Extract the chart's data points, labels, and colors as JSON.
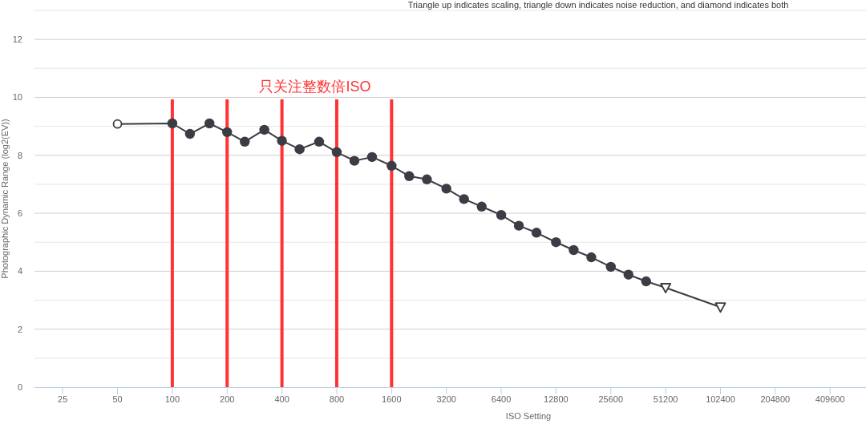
{
  "chart_data": {
    "type": "line",
    "subtitle": "Triangle up indicates scaling, triangle down indicates noise reduction, and diamond indicates both",
    "xlabel": "ISO Setting",
    "ylabel": "Photographic Dynamic Range (log2(EV))",
    "annotations": [
      "只关注整数倍ISO"
    ],
    "log": "x",
    "xlim": [
      17.5,
      645000
    ],
    "xticks": [
      25,
      50,
      100,
      200,
      400,
      800,
      1600,
      3200,
      6400,
      12800,
      25600,
      51200,
      102400,
      204800,
      409600
    ],
    "ylim": [
      0,
      13
    ],
    "yticks": [
      0,
      {
        "value": 1,
        "label": null
      },
      2,
      {
        "value": 3,
        "label": null
      },
      4,
      {
        "value": 5,
        "label": null
      },
      6,
      {
        "value": 7,
        "label": null
      },
      8,
      {
        "value": 9,
        "label": null
      },
      10,
      {
        "value": 11,
        "label": null
      },
      12,
      {
        "value": 13,
        "label": null
      }
    ],
    "grid": "y",
    "series": [
      {
        "color": "#3c3c44",
        "x": [
          50,
          100,
          125,
          160,
          200,
          250,
          320,
          400,
          500,
          640,
          800,
          1000,
          1250,
          1600,
          2000,
          2500,
          3200,
          4000,
          5000,
          6400,
          8000,
          10000,
          12800,
          16000,
          20000,
          25600,
          32000,
          40000,
          51200,
          102400
        ],
        "values": [
          9.08,
          9.1,
          8.74,
          9.1,
          8.8,
          8.47,
          8.88,
          8.5,
          8.21,
          8.47,
          8.11,
          7.81,
          7.94,
          7.64,
          7.28,
          7.17,
          6.85,
          6.49,
          6.23,
          5.94,
          5.57,
          5.33,
          5.0,
          4.73,
          4.48,
          4.15,
          3.88,
          3.65,
          3.43,
          2.76
        ],
        "marker": [
          "circle",
          "circle",
          "circle",
          "circle",
          "circle",
          "circle",
          "circle",
          "circle",
          "circle",
          "circle",
          "circle",
          "circle",
          "circle",
          "circle",
          "circle",
          "circle",
          "circle",
          "circle",
          "circle",
          "circle",
          "circle",
          "circle",
          "circle",
          "circle",
          "circle",
          "circle",
          "circle",
          "circle",
          "triangle-down",
          "triangle-down"
        ],
        "colors": [
          "#ffffff",
          "#3c3c44",
          "#3c3c44",
          "#3c3c44",
          "#3c3c44",
          "#3c3c44",
          "#3c3c44",
          "#3c3c44",
          "#3c3c44",
          "#3c3c44",
          "#3c3c44",
          "#3c3c44",
          "#3c3c44",
          "#3c3c44",
          "#3c3c44",
          "#3c3c44",
          "#3c3c44",
          "#3c3c44",
          "#3c3c44",
          "#3c3c44",
          "#3c3c44",
          "#3c3c44",
          "#3c3c44",
          "#3c3c44",
          "#3c3c44",
          "#3c3c44",
          "#3c3c44",
          "#3c3c44",
          "#ffffff",
          "#ffffff"
        ]
      }
    ],
    "ref_lines": [
      {
        "axis": "x",
        "value": 100,
        "color": "#ff3333"
      },
      {
        "axis": "x",
        "value": 200,
        "color": "#ff3333"
      },
      {
        "axis": "x",
        "value": 400,
        "color": "#ff3333"
      },
      {
        "axis": "x",
        "value": 800,
        "color": "#ff3333"
      },
      {
        "axis": "x",
        "value": 1600,
        "color": "#ff3333"
      }
    ]
  }
}
